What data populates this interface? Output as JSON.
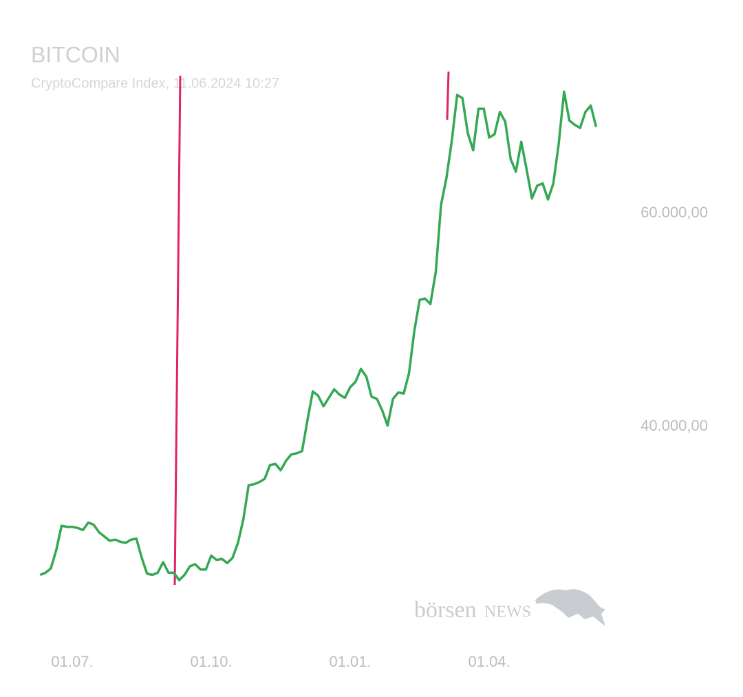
{
  "chart_data": {
    "type": "line",
    "title": "BITCOIN",
    "subtitle": "CryptoCompare Index, 11.06.2024 10:27",
    "watermark": {
      "prefix": "börsen",
      "suffix": "NEWS"
    },
    "categories": [
      null,
      null,
      null,
      null,
      null,
      null,
      "01.07.",
      null,
      null,
      null,
      null,
      null,
      null,
      null,
      null,
      null,
      null,
      null,
      null,
      null,
      null,
      null,
      null,
      null,
      null,
      null,
      null,
      null,
      null,
      null,
      null,
      null,
      "01.10.",
      null,
      null,
      null,
      null,
      null,
      null,
      null,
      null,
      null,
      null,
      null,
      null,
      null,
      null,
      null,
      null,
      null,
      null,
      null,
      null,
      null,
      null,
      null,
      null,
      null,
      "01.01.",
      null,
      null,
      null,
      null,
      null,
      null,
      null,
      null,
      null,
      null,
      null,
      null,
      null,
      null,
      null,
      null,
      null,
      null,
      null,
      null,
      null,
      null,
      null,
      null,
      null,
      "01.04.",
      null,
      null,
      null,
      null,
      null,
      null,
      null,
      null,
      null,
      null,
      null,
      null,
      null,
      null,
      null,
      null,
      null,
      null,
      null,
      null
    ],
    "values": [
      26100,
      26300,
      26700,
      28400,
      30700,
      30600,
      30600,
      30500,
      30300,
      31000,
      30800,
      30100,
      29700,
      29300,
      29400,
      29200,
      29100,
      29400,
      29500,
      27700,
      26200,
      26100,
      26300,
      27300,
      26300,
      26300,
      25600,
      26100,
      26900,
      27100,
      26600,
      26600,
      27900,
      27500,
      27600,
      27200,
      27700,
      29100,
      31300,
      34500,
      34600,
      34800,
      35100,
      36400,
      36500,
      35900,
      36800,
      37400,
      37500,
      37700,
      40600,
      43300,
      42900,
      41900,
      42700,
      43500,
      43000,
      42700,
      43700,
      44200,
      45400,
      44700,
      42800,
      42600,
      41500,
      40100,
      42600,
      43200,
      43100,
      45000,
      49000,
      51900,
      52000,
      51500,
      54500,
      60800,
      63300,
      66800,
      71100,
      70800,
      67500,
      65900,
      69800,
      69800,
      67100,
      67400,
      69500,
      68600,
      65100,
      63900,
      66700,
      64100,
      61400,
      62600,
      62800,
      61300,
      62800,
      66500,
      71400,
      68700,
      68300,
      68000,
      69500,
      70100,
      68100
    ],
    "color": "#34a853",
    "ylim": [
      22000,
      74000
    ],
    "yticks": [
      {
        "value": 40000,
        "label": "40.000,00"
      },
      {
        "value": 60000,
        "label": "60.000,00"
      }
    ],
    "grid": false
  }
}
